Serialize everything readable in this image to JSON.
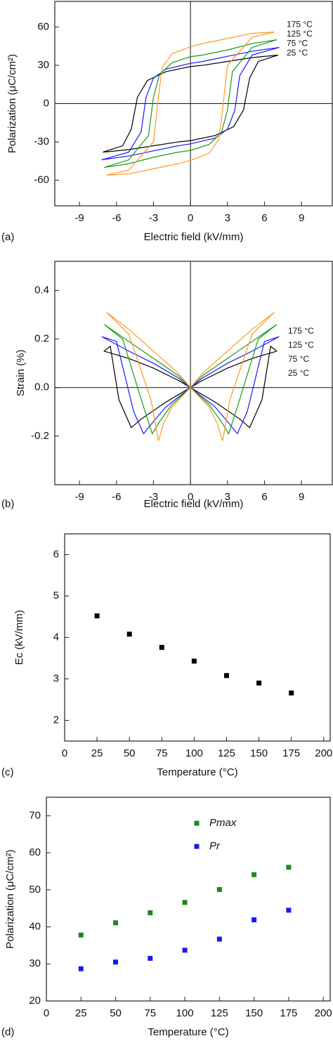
{
  "chart_data": [
    {
      "type": "line",
      "panel_label": "(a)",
      "x_label": "Electric field (kV/mm)",
      "y_label": "Polarization (μC/cm²)",
      "xlim": [
        -11,
        11.5
      ],
      "xticks": [
        -9,
        -6,
        -3,
        0,
        3,
        6,
        9
      ],
      "ylim": [
        -80,
        80
      ],
      "yticks": [
        -60,
        -30,
        0,
        30,
        60
      ],
      "zero_lines": true,
      "legend": "right",
      "series": [
        {
          "name": "25 °C",
          "color": "#000000",
          "x": [
            7.1,
            5,
            3,
            1,
            0,
            -2,
            -3.5,
            -4.3,
            -4.8,
            -5.5,
            -7.1,
            -5,
            -3,
            -1,
            0,
            2,
            3.5,
            4.3,
            4.8,
            5.5,
            7.1
          ],
          "values": [
            38,
            36,
            33,
            30,
            29,
            25,
            18,
            5,
            -20,
            -33,
            -38,
            -36,
            -33,
            -30,
            -29,
            -25,
            -18,
            -5,
            20,
            33,
            38
          ]
        },
        {
          "name": "75 °C",
          "color": "#1a1aff",
          "x": [
            7.2,
            5,
            3,
            1,
            0,
            -2,
            -3,
            -3.6,
            -4,
            -5,
            -7.2,
            -5,
            -3,
            -1,
            0,
            2,
            3,
            3.6,
            4,
            5,
            7.2
          ],
          "values": [
            44,
            41,
            37,
            33,
            31.5,
            27,
            20,
            5,
            -22,
            -38,
            -44,
            -41,
            -37,
            -33,
            -31.5,
            -27,
            -20,
            -5,
            22,
            38,
            44
          ]
        },
        {
          "name": "125 °C",
          "color": "#1a9a1a",
          "x": [
            7,
            5,
            3,
            1,
            0,
            -1.5,
            -2.5,
            -3,
            -3.4,
            -5,
            -7,
            -5,
            -3,
            -1,
            0,
            1.5,
            2.5,
            3,
            3.4,
            5,
            7
          ],
          "values": [
            50,
            47,
            42,
            38,
            36.7,
            32,
            23,
            5,
            -25,
            -44,
            -50,
            -47,
            -42,
            -38,
            -36.7,
            -32,
            -23,
            -5,
            25,
            44,
            50
          ]
        },
        {
          "name": "175 °C",
          "color": "#ff9922",
          "x": [
            6.8,
            5,
            3,
            1,
            0,
            -1.5,
            -2.3,
            -2.6,
            -3,
            -5,
            -6.8,
            -5,
            -3,
            -1,
            0,
            1.5,
            2.3,
            2.6,
            3,
            5,
            6.8
          ],
          "values": [
            56,
            55,
            51,
            47,
            44.5,
            39,
            28,
            5,
            -30,
            -52,
            -56,
            -55,
            -51,
            -47,
            -44.5,
            -39,
            -28,
            -5,
            30,
            52,
            56
          ]
        }
      ]
    },
    {
      "type": "line",
      "panel_label": "(b)",
      "x_label": "Electric field (kV/mm)",
      "y_label": "Strain (%)",
      "xlim": [
        -11,
        11.5
      ],
      "xticks": [
        -9,
        -6,
        -3,
        0,
        3,
        6,
        9
      ],
      "ylim": [
        -0.4,
        0.52
      ],
      "yticks": [
        {
          "value": -0.2,
          "label": "-0.2"
        },
        {
          "value": 0,
          "label": "0.0"
        },
        0.2,
        0.4
      ],
      "zero_lines": true,
      "legend": "right",
      "series": [
        {
          "name": "25 °C",
          "color": "#000000",
          "x": [
            7,
            5,
            3,
            1,
            0,
            -2,
            -4,
            -4.8,
            -5.8,
            -6.5,
            -7,
            -5,
            -3,
            -1,
            0,
            2,
            4,
            4.8,
            5.8,
            6.5,
            7
          ],
          "values": [
            0.15,
            0.12,
            0.08,
            0.03,
            0,
            -0.06,
            -0.13,
            -0.165,
            -0.05,
            0.17,
            0.15,
            0.12,
            0.08,
            0.03,
            0,
            -0.06,
            -0.13,
            -0.165,
            -0.05,
            0.17,
            0.15
          ]
        },
        {
          "name": "75 °C",
          "color": "#1a1aff",
          "x": [
            7.2,
            5,
            3,
            1,
            0,
            -2,
            -3,
            -3.8,
            -4.6,
            -6,
            -7.2,
            -5,
            -3,
            -1,
            0,
            2,
            3,
            3.8,
            4.6,
            6,
            7.2
          ],
          "values": [
            0.21,
            0.15,
            0.1,
            0.04,
            0,
            -0.08,
            -0.14,
            -0.19,
            -0.1,
            0.19,
            0.21,
            0.15,
            0.1,
            0.04,
            0,
            -0.08,
            -0.14,
            -0.19,
            -0.1,
            0.19,
            0.21
          ]
        },
        {
          "name": "125 °C",
          "color": "#1a9a1a",
          "x": [
            7,
            5,
            3,
            1,
            0,
            -1.5,
            -2.5,
            -3.1,
            -3.8,
            -5.5,
            -7,
            -5,
            -3,
            -1,
            0,
            1.5,
            2.5,
            3.1,
            3.8,
            5.5,
            7
          ],
          "values": [
            0.26,
            0.19,
            0.12,
            0.05,
            0,
            -0.07,
            -0.14,
            -0.19,
            -0.08,
            0.2,
            0.26,
            0.19,
            0.12,
            0.05,
            0,
            -0.07,
            -0.14,
            -0.19,
            -0.08,
            0.2,
            0.26
          ]
        },
        {
          "name": "175 °C",
          "color": "#ff9922",
          "x": [
            6.8,
            5,
            3,
            1,
            0,
            -1.5,
            -2.2,
            -2.6,
            -3.2,
            -5,
            -6.8,
            -5,
            -3,
            -1,
            0,
            1.5,
            2.2,
            2.6,
            3.2,
            5,
            6.8
          ],
          "values": [
            0.31,
            0.24,
            0.15,
            0.06,
            0,
            -0.08,
            -0.15,
            -0.22,
            -0.05,
            0.22,
            0.31,
            0.24,
            0.15,
            0.06,
            0,
            -0.08,
            -0.15,
            -0.22,
            -0.05,
            0.22,
            0.31
          ]
        }
      ]
    },
    {
      "type": "scatter",
      "panel_label": "(c)",
      "x_label": "Temperature (°C)",
      "y_label": "Ec (kV/mm)",
      "xlim": [
        0,
        205
      ],
      "xticks": [
        0,
        25,
        50,
        75,
        100,
        125,
        150,
        175,
        200
      ],
      "ylim": [
        1.5,
        6.5
      ],
      "yticks": [
        2,
        3,
        4,
        5,
        6
      ],
      "x": [
        25,
        50,
        75,
        100,
        125,
        150,
        175
      ],
      "series": [
        {
          "color": "#000000",
          "values": [
            4.52,
            4.08,
            3.76,
            3.43,
            3.08,
            2.9,
            2.66
          ]
        }
      ]
    },
    {
      "type": "scatter",
      "panel_label": "(d)",
      "x_label": "Temperature (°C)",
      "y_label": "Polarization (μC/cm²)",
      "xlim": [
        0,
        205
      ],
      "xticks": [
        0,
        25,
        50,
        75,
        100,
        125,
        150,
        175,
        200
      ],
      "ylim": [
        20,
        75
      ],
      "yticks": [
        20,
        30,
        40,
        50,
        60,
        70
      ],
      "legend": "upper center",
      "x": [
        25,
        50,
        75,
        100,
        125,
        150,
        175
      ],
      "series": [
        {
          "name": "Pmax",
          "color": "#1a8a1a",
          "values": [
            37.8,
            41.1,
            43.8,
            46.6,
            50.1,
            54.1,
            56.1
          ]
        },
        {
          "name": "Pr",
          "color": "#1a1aee",
          "values": [
            28.7,
            30.5,
            31.5,
            33.7,
            36.7,
            41.9,
            44.5
          ]
        }
      ]
    }
  ]
}
